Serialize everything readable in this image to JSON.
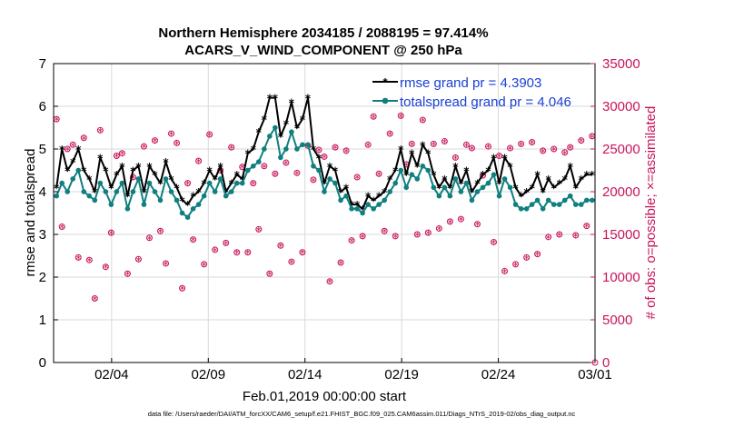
{
  "chart_data": {
    "type": "line",
    "title": "Northern Hemisphere 2034185 / 2088195 = 97.414%",
    "subtitle": "ACARS_V_WIND_COMPONENT @ 250 hPa",
    "xlabel": "Feb.01,2019 00:00:00 start",
    "ylabel_left": "rmse and totalspread",
    "ylabel_right": "# of obs: o=possible; ×=assimilated",
    "footer": "data file: /Users/raeder/DAI/ATM_forcXX/CAM6_setup/f.e21.FHIST_BGC.f09_025.CAM6assim.011/Diags_NTrS_2019-02/obs_diag_output.nc",
    "xlim": [
      0,
      28
    ],
    "ylim_left": [
      0,
      7
    ],
    "ylim_right": [
      0,
      35000
    ],
    "xticks": [
      {
        "pos": 3,
        "label": "02/04"
      },
      {
        "pos": 8,
        "label": "02/09"
      },
      {
        "pos": 13,
        "label": "02/14"
      },
      {
        "pos": 18,
        "label": "02/19"
      },
      {
        "pos": 23,
        "label": "02/24"
      },
      {
        "pos": 28,
        "label": "03/01"
      }
    ],
    "yticks_left": [
      "0",
      "1",
      "2",
      "3",
      "4",
      "5",
      "6",
      "7"
    ],
    "yticks_right": [
      "0",
      "5000",
      "10000",
      "15000",
      "20000",
      "25000",
      "30000",
      "35000"
    ],
    "colors": {
      "rmse": "#000000",
      "spread": "#0f7f7f",
      "obs": "#c8145a",
      "grid": "#d9d9d9",
      "right_axis": "#c8145a"
    },
    "legend": [
      "rmse grand pr = 4.3903",
      "totalspread grand pr = 4.046"
    ],
    "series": [
      {
        "name": "rmse grand pr = 4.3903",
        "values": [
          4.1,
          5.0,
          4.5,
          4.7,
          5.0,
          4.5,
          4.3,
          4.0,
          4.8,
          4.5,
          4.1,
          4.4,
          4.6,
          3.9,
          4.5,
          4.6,
          4.0,
          4.6,
          4.4,
          4.2,
          4.7,
          4.3,
          4.1,
          3.8,
          3.7,
          3.9,
          4.0,
          4.2,
          4.5,
          4.3,
          4.6,
          4.0,
          4.2,
          4.4,
          4.3,
          4.9,
          5.0,
          5.4,
          5.7,
          6.2,
          6.2,
          5.3,
          5.6,
          6.1,
          5.5,
          5.7,
          6.2,
          5.0,
          4.8,
          4.2,
          4.6,
          4.5,
          4.0,
          4.1,
          3.7,
          3.7,
          3.6,
          3.9,
          3.8,
          3.9,
          4.0,
          4.3,
          4.5,
          5.0,
          4.4,
          4.9,
          4.6,
          5.1,
          4.9,
          4.4,
          4.1,
          4.3,
          4.1,
          4.6,
          4.2,
          4.5,
          4.0,
          4.2,
          4.4,
          4.5,
          4.8,
          4.2,
          4.8,
          4.6,
          4.1,
          3.9,
          4.0,
          4.1,
          4.4,
          4.0,
          4.3,
          4.1,
          4.2,
          4.3,
          4.6,
          4.1,
          4.3,
          4.4,
          4.4
        ]
      },
      {
        "name": "totalspread grand pr = 4.046",
        "values": [
          3.9,
          4.2,
          4.0,
          4.3,
          4.5,
          4.0,
          3.9,
          3.8,
          4.2,
          4.0,
          3.7,
          4.0,
          4.2,
          3.6,
          4.0,
          4.3,
          3.7,
          4.2,
          4.0,
          3.8,
          4.3,
          4.0,
          3.8,
          3.5,
          3.4,
          3.6,
          3.7,
          3.9,
          4.2,
          4.0,
          4.3,
          3.9,
          4.0,
          4.2,
          4.2,
          4.5,
          4.6,
          4.7,
          5.0,
          5.3,
          5.5,
          4.8,
          5.0,
          5.4,
          5.0,
          5.1,
          5.1,
          4.6,
          4.5,
          4.0,
          4.3,
          4.2,
          3.8,
          3.9,
          3.6,
          3.6,
          3.5,
          3.7,
          3.6,
          3.7,
          3.8,
          4.0,
          4.2,
          4.5,
          4.1,
          4.4,
          4.3,
          4.6,
          4.5,
          4.1,
          3.9,
          4.1,
          3.9,
          4.3,
          4.0,
          4.2,
          3.8,
          4.0,
          4.1,
          4.2,
          4.4,
          3.9,
          4.3,
          4.1,
          3.7,
          3.6,
          3.6,
          3.7,
          3.8,
          3.6,
          3.8,
          3.7,
          3.7,
          3.8,
          3.9,
          3.7,
          3.7,
          3.8,
          3.8
        ]
      }
    ],
    "obs_possible": [
      28500,
      15900,
      25000,
      25500,
      12300,
      26300,
      12000,
      7500,
      27200,
      11200,
      15200,
      24200,
      24500,
      10400,
      21700,
      12100,
      25300,
      14600,
      26000,
      15400,
      11600,
      26800,
      25700,
      8700,
      21000,
      14400,
      23600,
      11500,
      26700,
      13200,
      22500,
      14000,
      25200,
      12900,
      22900,
      12900,
      21000,
      15600,
      23000,
      10400,
      22100,
      13700,
      23400,
      11800,
      22200,
      12900,
      25400,
      21400,
      24900,
      24100,
      9500,
      25200,
      11700,
      24800,
      14300,
      21700,
      14800,
      25500,
      28800,
      22100,
      15400,
      26800,
      14800,
      28900,
      23200,
      25600,
      15000,
      28400,
      15200,
      25600,
      15700,
      25900,
      16500,
      24000,
      16800,
      25500,
      25100,
      16200,
      21900,
      25300,
      14100,
      24200,
      10700,
      25100,
      11500,
      25600,
      12300,
      25800,
      12700,
      24800,
      14700,
      25000,
      15000,
      24600,
      25200,
      14900,
      26000,
      16000,
      26500
    ]
  }
}
